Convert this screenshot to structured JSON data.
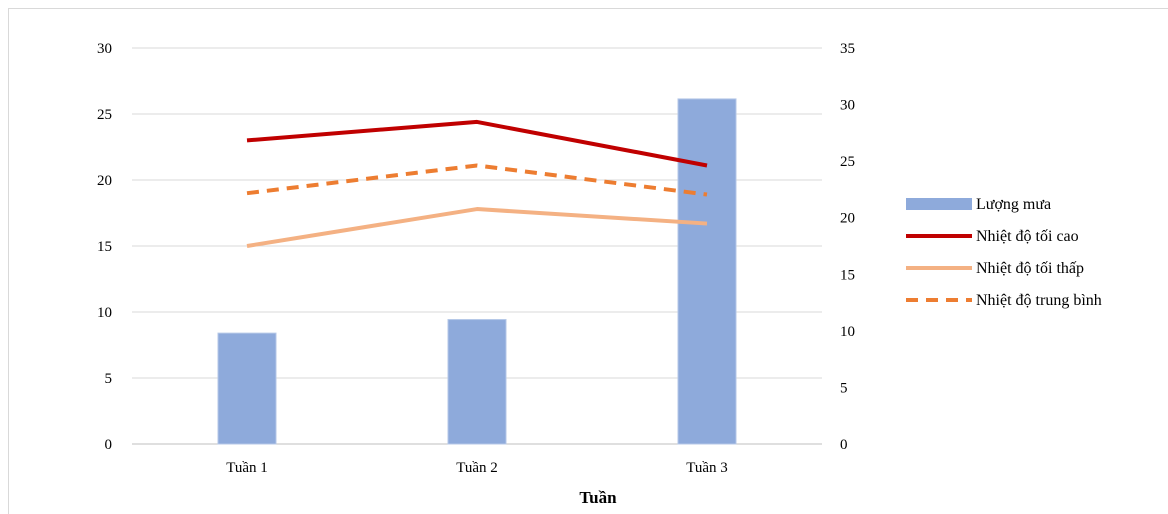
{
  "chart_data": {
    "type": "bar",
    "categories": [
      "Tuần 1",
      "Tuần 2",
      "Tuần 3"
    ],
    "xlabel": "Tuần",
    "y_left": {
      "min": 0,
      "max": 30,
      "step": 5
    },
    "y_right": {
      "min": 0,
      "max": 35,
      "step": 5
    },
    "grid": true,
    "legend_position": "right",
    "series": [
      {
        "name": "Lượng mưa",
        "kind": "bar",
        "axis": "right",
        "color": "#8eaadb",
        "values": [
          9.8,
          11.0,
          30.5
        ]
      },
      {
        "name": "Nhiệt độ tối cao",
        "kind": "line",
        "axis": "left",
        "color": "#c00000",
        "dash": "solid",
        "values": [
          23.0,
          24.4,
          21.1
        ]
      },
      {
        "name": "Nhiệt độ tối thấp",
        "kind": "line",
        "axis": "left",
        "color": "#f4b183",
        "dash": "solid",
        "values": [
          15.0,
          17.8,
          16.7
        ]
      },
      {
        "name": "Nhiệt độ trung bình",
        "kind": "line",
        "axis": "left",
        "color": "#ed7d31",
        "dash": "dashed",
        "values": [
          19.0,
          21.1,
          18.9
        ]
      }
    ]
  }
}
